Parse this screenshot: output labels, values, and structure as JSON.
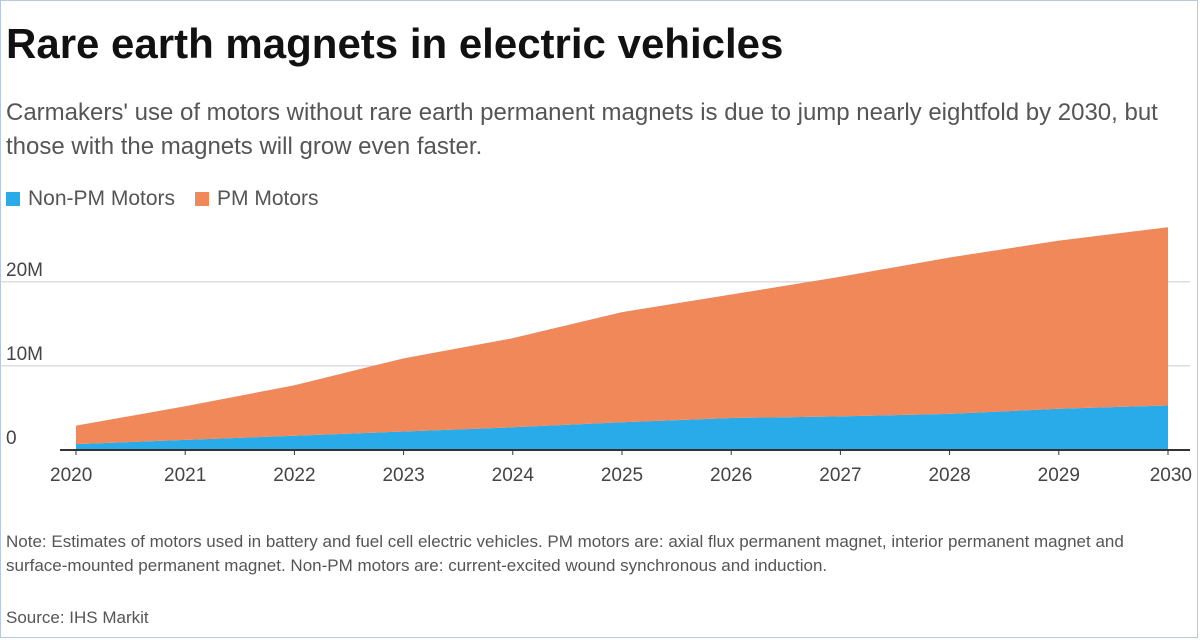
{
  "title": "Rare earth magnets in electric vehicles",
  "subtitle": "Carmakers' use of motors without rare earth permanent magnets is due to jump nearly eightfold by 2030, but those with the magnets will grow even faster.",
  "note": "Note: Estimates of motors used in battery and fuel cell electric vehicles. PM motors are: axial flux permanent magnet, interior permanent magnet and surface-mounted permanent magnet. Non-PM motors are: current-excited wound synchronous and induction.",
  "source": "Source: IHS Markit",
  "colors": {
    "non_pm": "#29ABE9",
    "pm": "#F0885A",
    "grid": "#cccccc",
    "axis": "#333333",
    "tick_text": "#444444",
    "border": "#b8c8dc"
  },
  "chart_data": {
    "type": "area",
    "stacked": true,
    "x": [
      "2020",
      "2021",
      "2022",
      "2023",
      "2024",
      "2025",
      "2026",
      "2027",
      "2028",
      "2029",
      "2030"
    ],
    "series": [
      {
        "name": "Non-PM Motors",
        "color": "#29ABE9",
        "values": [
          0.7,
          1.2,
          1.7,
          2.2,
          2.7,
          3.3,
          3.8,
          4.0,
          4.3,
          4.9,
          5.3
        ]
      },
      {
        "name": "PM Motors",
        "color": "#F0885A",
        "values": [
          2.2,
          4.0,
          6.0,
          8.7,
          10.6,
          13.1,
          14.7,
          16.6,
          18.6,
          20.0,
          21.2
        ]
      }
    ],
    "y_ticks": [
      {
        "value": 0,
        "label": "0"
      },
      {
        "value": 10,
        "label": "10M"
      },
      {
        "value": 20,
        "label": "20M"
      }
    ],
    "ylim": [
      0,
      27
    ],
    "y_unit": "millions of motors",
    "grid": true,
    "legend_position": "top-left"
  }
}
